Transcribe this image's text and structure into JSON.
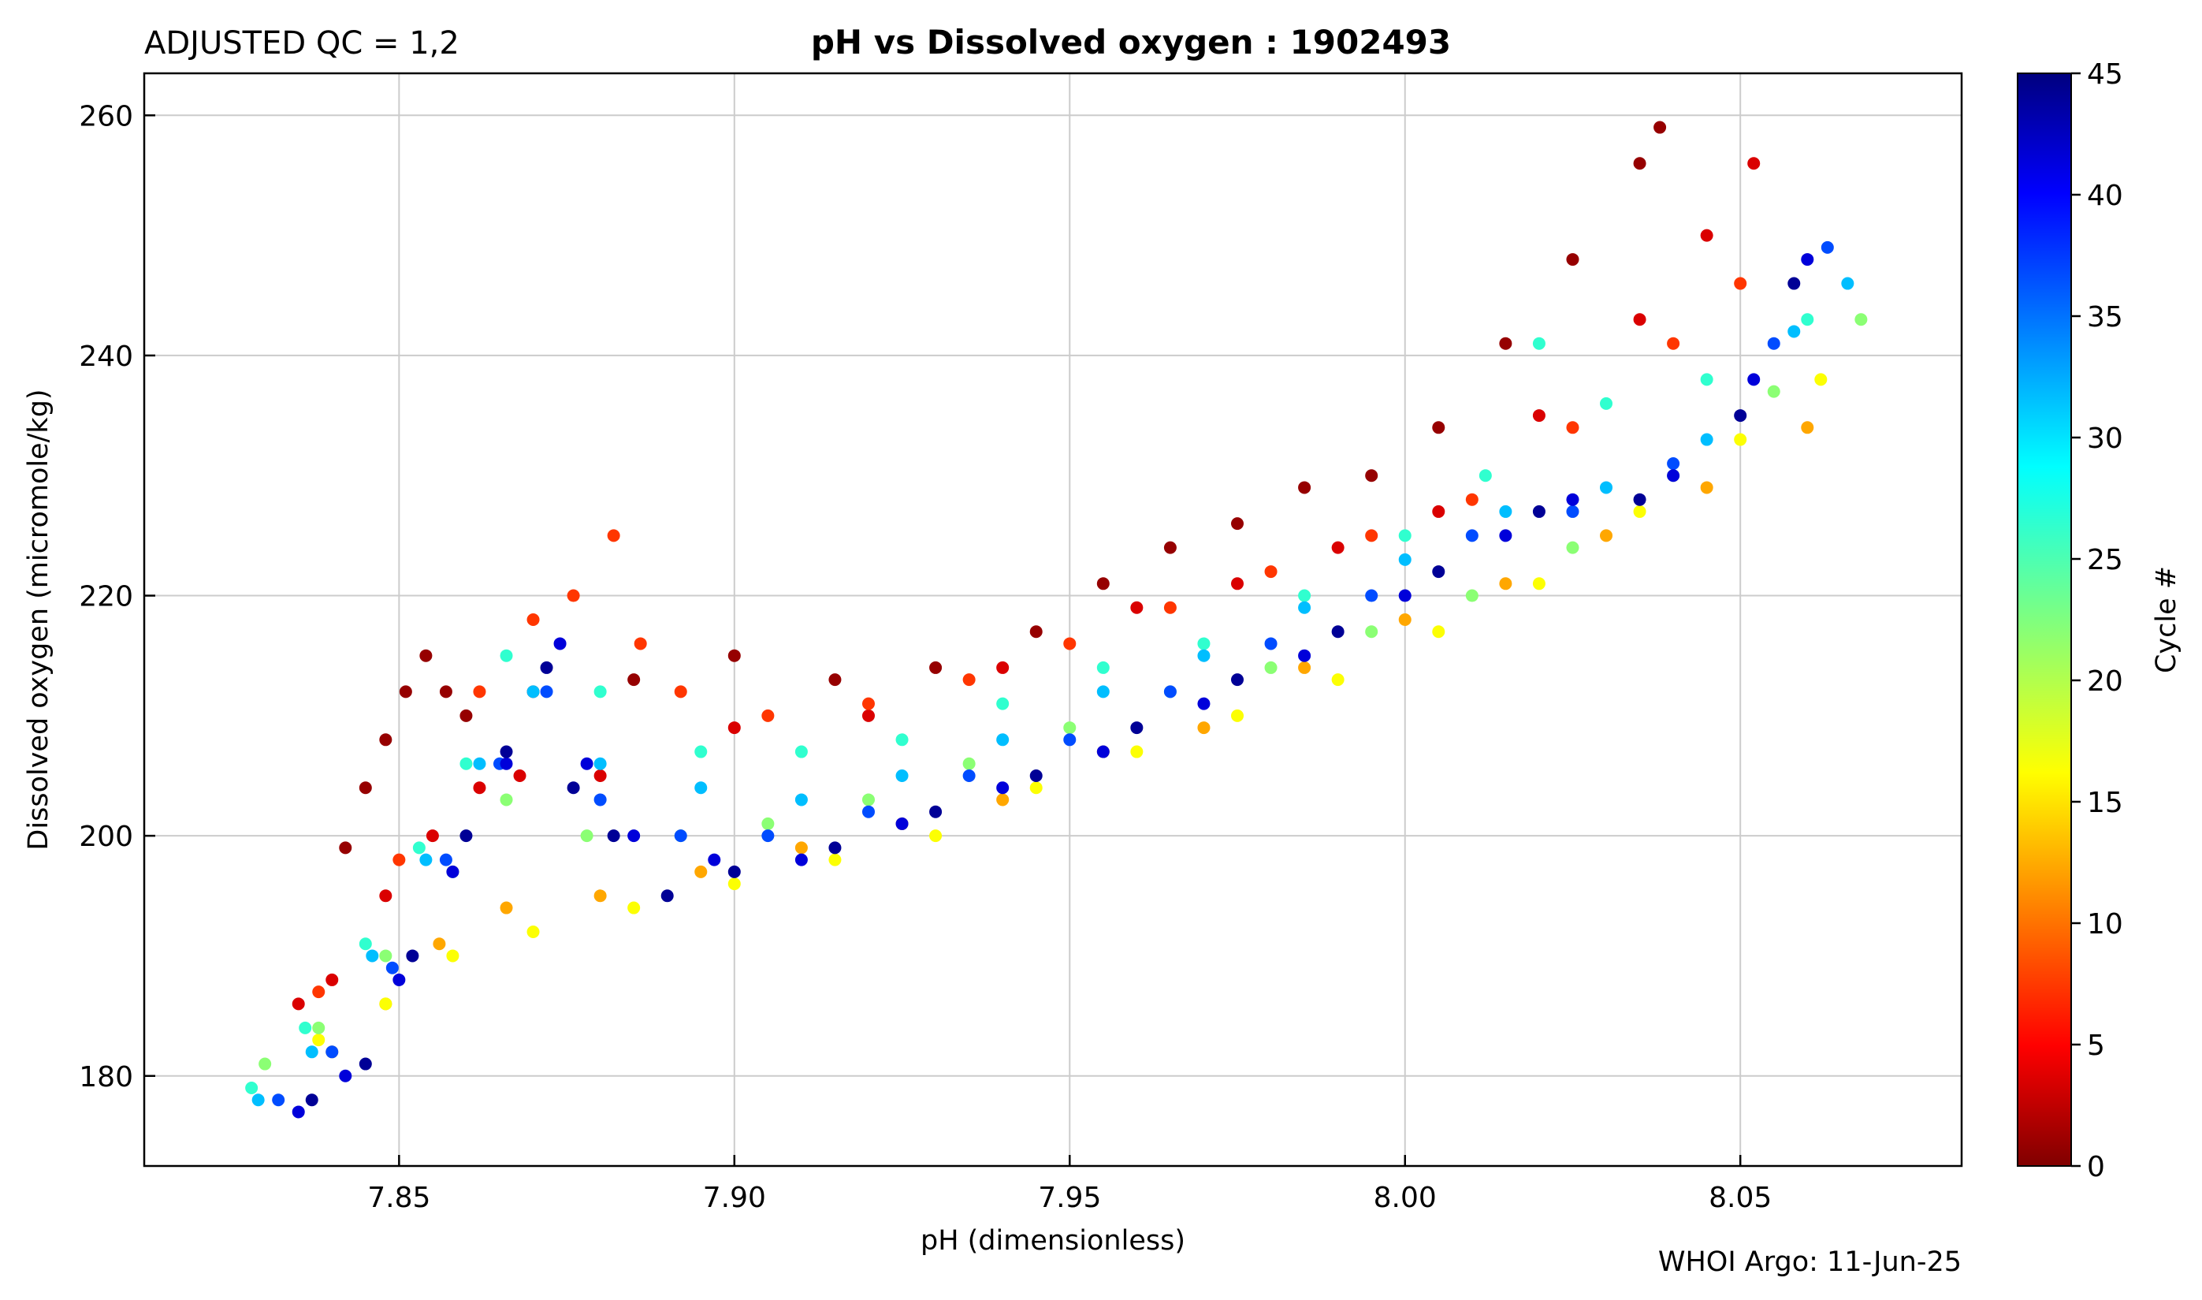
{
  "qc_label": "ADJUSTED QC = 1,2",
  "title": "pH vs Dissolved oxygen : 1902493",
  "credit": "WHOI Argo: 11-Jun-25",
  "colorbar": {
    "label": "Cycle #",
    "range": [
      0,
      45
    ],
    "ticks": [
      0,
      5,
      10,
      15,
      20,
      25,
      30,
      35,
      40,
      45
    ],
    "colormap": "jet_reversed"
  },
  "chart_data": {
    "type": "scatter",
    "title": "pH vs Dissolved oxygen : 1902493",
    "xlabel": "pH  (dimensionless)",
    "ylabel": "Dissolved oxygen  (micromole/kg)",
    "xlim": [
      7.812,
      8.083
    ],
    "ylim": [
      172.5,
      263.5
    ],
    "xticks": [
      7.85,
      7.9,
      7.95,
      8.0,
      8.05
    ],
    "xtick_labels": [
      "7.85",
      "7.90",
      "7.95",
      "8.00",
      "8.05"
    ],
    "yticks": [
      180,
      200,
      220,
      240,
      260
    ],
    "ytick_labels": [
      "180",
      "200",
      "220",
      "240",
      "260"
    ],
    "grid": true,
    "color_by": "cycle",
    "series": [
      {
        "cycle": 1,
        "points": [
          [
            7.842,
            199
          ],
          [
            7.845,
            204
          ],
          [
            7.848,
            208
          ],
          [
            7.851,
            212
          ],
          [
            7.854,
            215
          ],
          [
            7.857,
            212
          ],
          [
            7.86,
            210
          ],
          [
            7.87,
            212
          ],
          [
            7.885,
            213
          ],
          [
            7.9,
            215
          ],
          [
            7.915,
            213
          ],
          [
            7.93,
            214
          ],
          [
            7.945,
            217
          ],
          [
            7.955,
            221
          ],
          [
            7.965,
            224
          ],
          [
            7.975,
            226
          ],
          [
            7.985,
            229
          ],
          [
            7.995,
            230
          ],
          [
            8.005,
            234
          ],
          [
            8.015,
            241
          ],
          [
            8.025,
            248
          ],
          [
            8.035,
            256
          ],
          [
            8.038,
            259
          ]
        ]
      },
      {
        "cycle": 4,
        "points": [
          [
            7.835,
            186
          ],
          [
            7.84,
            188
          ],
          [
            7.848,
            195
          ],
          [
            7.855,
            200
          ],
          [
            7.862,
            204
          ],
          [
            7.868,
            205
          ],
          [
            7.88,
            205
          ],
          [
            7.9,
            209
          ],
          [
            7.92,
            210
          ],
          [
            7.94,
            214
          ],
          [
            7.96,
            219
          ],
          [
            7.975,
            221
          ],
          [
            7.99,
            224
          ],
          [
            8.005,
            227
          ],
          [
            8.02,
            235
          ],
          [
            8.035,
            243
          ],
          [
            8.045,
            250
          ],
          [
            8.052,
            256
          ]
        ]
      },
      {
        "cycle": 8,
        "points": [
          [
            7.838,
            187
          ],
          [
            7.85,
            198
          ],
          [
            7.862,
            212
          ],
          [
            7.87,
            218
          ],
          [
            7.876,
            220
          ],
          [
            7.882,
            225
          ],
          [
            7.886,
            216
          ],
          [
            7.892,
            212
          ],
          [
            7.905,
            210
          ],
          [
            7.92,
            211
          ],
          [
            7.935,
            213
          ],
          [
            7.95,
            216
          ],
          [
            7.965,
            219
          ],
          [
            7.98,
            222
          ],
          [
            7.995,
            225
          ],
          [
            8.01,
            228
          ],
          [
            8.025,
            234
          ],
          [
            8.04,
            241
          ],
          [
            8.05,
            246
          ]
        ]
      },
      {
        "cycle": 13,
        "points": [
          [
            7.84,
            182
          ],
          [
            7.848,
            186
          ],
          [
            7.856,
            191
          ],
          [
            7.866,
            194
          ],
          [
            7.88,
            195
          ],
          [
            7.895,
            197
          ],
          [
            7.91,
            199
          ],
          [
            7.925,
            201
          ],
          [
            7.94,
            203
          ],
          [
            7.955,
            207
          ],
          [
            7.97,
            209
          ],
          [
            7.985,
            214
          ],
          [
            8.0,
            218
          ],
          [
            8.015,
            221
          ],
          [
            8.03,
            225
          ],
          [
            8.045,
            229
          ],
          [
            8.06,
            234
          ]
        ]
      },
      {
        "cycle": 17,
        "points": [
          [
            7.838,
            183
          ],
          [
            7.848,
            186
          ],
          [
            7.858,
            190
          ],
          [
            7.87,
            192
          ],
          [
            7.885,
            194
          ],
          [
            7.9,
            196
          ],
          [
            7.915,
            198
          ],
          [
            7.93,
            200
          ],
          [
            7.945,
            204
          ],
          [
            7.96,
            207
          ],
          [
            7.975,
            210
          ],
          [
            7.99,
            213
          ],
          [
            8.005,
            217
          ],
          [
            8.02,
            221
          ],
          [
            8.035,
            227
          ],
          [
            8.05,
            233
          ],
          [
            8.062,
            238
          ]
        ]
      },
      {
        "cycle": 22,
        "points": [
          [
            7.83,
            181
          ],
          [
            7.838,
            184
          ],
          [
            7.848,
            190
          ],
          [
            7.858,
            197
          ],
          [
            7.866,
            203
          ],
          [
            7.878,
            200
          ],
          [
            7.892,
            200
          ],
          [
            7.905,
            201
          ],
          [
            7.92,
            203
          ],
          [
            7.935,
            206
          ],
          [
            7.95,
            209
          ],
          [
            7.965,
            212
          ],
          [
            7.98,
            214
          ],
          [
            7.995,
            217
          ],
          [
            8.01,
            220
          ],
          [
            8.025,
            224
          ],
          [
            8.04,
            230
          ],
          [
            8.055,
            237
          ],
          [
            8.068,
            243
          ]
        ]
      },
      {
        "cycle": 26,
        "points": [
          [
            7.828,
            179
          ],
          [
            7.836,
            184
          ],
          [
            7.845,
            191
          ],
          [
            7.853,
            199
          ],
          [
            7.86,
            206
          ],
          [
            7.866,
            215
          ],
          [
            7.88,
            212
          ],
          [
            7.895,
            207
          ],
          [
            7.91,
            207
          ],
          [
            7.925,
            208
          ],
          [
            7.94,
            211
          ],
          [
            7.955,
            214
          ],
          [
            7.97,
            216
          ],
          [
            7.985,
            220
          ],
          [
            8.0,
            225
          ],
          [
            8.012,
            230
          ],
          [
            8.02,
            241
          ],
          [
            8.03,
            236
          ],
          [
            8.045,
            238
          ],
          [
            8.06,
            243
          ]
        ]
      },
      {
        "cycle": 31,
        "points": [
          [
            7.829,
            178
          ],
          [
            7.837,
            182
          ],
          [
            7.846,
            190
          ],
          [
            7.854,
            198
          ],
          [
            7.862,
            206
          ],
          [
            7.87,
            212
          ],
          [
            7.88,
            206
          ],
          [
            7.895,
            204
          ],
          [
            7.91,
            203
          ],
          [
            7.925,
            205
          ],
          [
            7.94,
            208
          ],
          [
            7.955,
            212
          ],
          [
            7.97,
            215
          ],
          [
            7.985,
            219
          ],
          [
            8.0,
            223
          ],
          [
            8.015,
            227
          ],
          [
            8.03,
            229
          ],
          [
            8.045,
            233
          ],
          [
            8.058,
            242
          ],
          [
            8.066,
            246
          ]
        ]
      },
      {
        "cycle": 36,
        "points": [
          [
            7.832,
            178
          ],
          [
            7.84,
            182
          ],
          [
            7.849,
            189
          ],
          [
            7.857,
            198
          ],
          [
            7.865,
            206
          ],
          [
            7.872,
            212
          ],
          [
            7.88,
            203
          ],
          [
            7.892,
            200
          ],
          [
            7.905,
            200
          ],
          [
            7.92,
            202
          ],
          [
            7.935,
            205
          ],
          [
            7.95,
            208
          ],
          [
            7.965,
            212
          ],
          [
            7.98,
            216
          ],
          [
            7.995,
            220
          ],
          [
            8.01,
            225
          ],
          [
            8.025,
            227
          ],
          [
            8.04,
            231
          ],
          [
            8.055,
            241
          ],
          [
            8.063,
            249
          ]
        ]
      },
      {
        "cycle": 41,
        "points": [
          [
            7.835,
            177
          ],
          [
            7.842,
            180
          ],
          [
            7.85,
            188
          ],
          [
            7.858,
            197
          ],
          [
            7.866,
            206
          ],
          [
            7.874,
            216
          ],
          [
            7.878,
            206
          ],
          [
            7.885,
            200
          ],
          [
            7.897,
            198
          ],
          [
            7.91,
            198
          ],
          [
            7.925,
            201
          ],
          [
            7.94,
            204
          ],
          [
            7.955,
            207
          ],
          [
            7.97,
            211
          ],
          [
            7.985,
            215
          ],
          [
            8.0,
            220
          ],
          [
            8.015,
            225
          ],
          [
            8.025,
            228
          ],
          [
            8.04,
            230
          ],
          [
            8.052,
            238
          ],
          [
            8.06,
            248
          ]
        ]
      },
      {
        "cycle": 44,
        "points": [
          [
            7.837,
            178
          ],
          [
            7.845,
            181
          ],
          [
            7.852,
            190
          ],
          [
            7.86,
            200
          ],
          [
            7.866,
            207
          ],
          [
            7.872,
            214
          ],
          [
            7.876,
            204
          ],
          [
            7.882,
            200
          ],
          [
            7.89,
            195
          ],
          [
            7.9,
            197
          ],
          [
            7.915,
            199
          ],
          [
            7.93,
            202
          ],
          [
            7.945,
            205
          ],
          [
            7.96,
            209
          ],
          [
            7.975,
            213
          ],
          [
            7.99,
            217
          ],
          [
            8.005,
            222
          ],
          [
            8.02,
            227
          ],
          [
            8.035,
            228
          ],
          [
            8.05,
            235
          ],
          [
            8.058,
            246
          ]
        ]
      }
    ]
  }
}
